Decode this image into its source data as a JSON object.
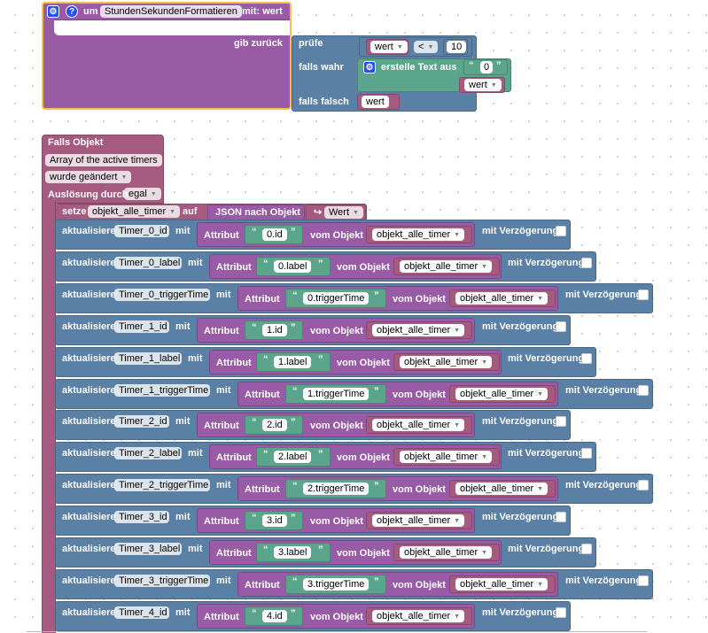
{
  "function_block": {
    "prefix": "um",
    "name": "StundenSekundenFormatieren",
    "with_param": "mit: wert",
    "return_label": "gib zurück",
    "check_label": "prüfe",
    "if_true_label": "falls wahr",
    "if_false_label": "falls falsch",
    "compare_var": "wert",
    "compare_op": "<",
    "compare_value": "10",
    "create_text_label": "erstelle Text aus",
    "text_zero": "0",
    "true_var": "wert",
    "false_var": "wert",
    "help_icon": "?"
  },
  "event_block": {
    "title": "Falls Objekt",
    "object_name": "Array of the active timers",
    "trigger_condition": "wurde geändert",
    "trigger_by_label": "Auslösung durch",
    "trigger_by_value": "egal",
    "set_label": "setze",
    "set_var": "objekt_alle_timer",
    "to_label": "auf",
    "json_label": "JSON nach Objekt",
    "value_label": "Wert",
    "value_arrow": "↪"
  },
  "update_labels": {
    "update": "aktualisiere",
    "with": "mit",
    "attribute": "Attribut",
    "from_object": "vom Objekt",
    "object_var": "objekt_alle_timer",
    "delay": "mit Verzögerung"
  },
  "update_rows": [
    {
      "target": "Timer_0_id",
      "attr": "0.id"
    },
    {
      "target": "Timer_0_label",
      "attr": "0.label"
    },
    {
      "target": "Timer_0_triggerTime",
      "attr": "0.triggerTime"
    },
    {
      "target": "Timer_1_id",
      "attr": "1.id"
    },
    {
      "target": "Timer_1_label",
      "attr": "1.label"
    },
    {
      "target": "Timer_1_triggerTime",
      "attr": "1.triggerTime"
    },
    {
      "target": "Timer_2_id",
      "attr": "2.id"
    },
    {
      "target": "Timer_2_label",
      "attr": "2.label"
    },
    {
      "target": "Timer_2_triggerTime",
      "attr": "2.triggerTime"
    },
    {
      "target": "Timer_3_id",
      "attr": "3.id"
    },
    {
      "target": "Timer_3_label",
      "attr": "3.label"
    },
    {
      "target": "Timer_3_triggerTime",
      "attr": "3.triggerTime"
    },
    {
      "target": "Timer_4_id",
      "attr": "4.id"
    }
  ],
  "colors": {
    "procedure": "#995ba5",
    "logic": "#5b80a5",
    "text": "#5ba58c",
    "variable": "#a55b80",
    "selection_outline": "#f5c242",
    "gear_icon": "#2050ff"
  }
}
